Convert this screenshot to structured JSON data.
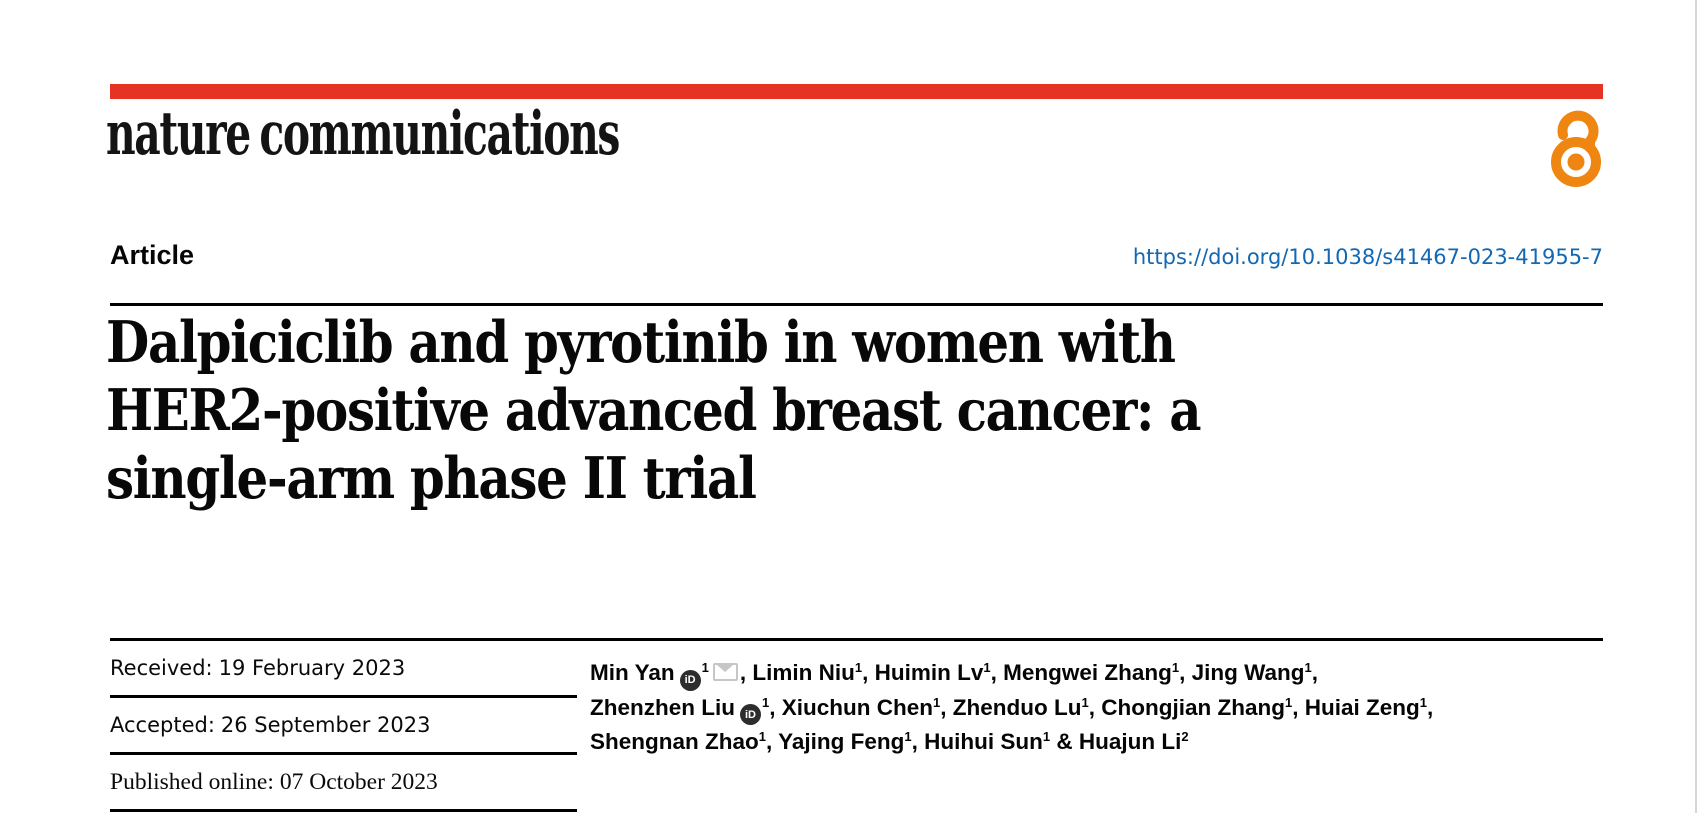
{
  "journal": {
    "logo_text": "nature communications",
    "open_access_icon": "open-access-lock-icon"
  },
  "header": {
    "article_type": "Article",
    "doi": "https://doi.org/10.1038/s41467-023-41955-7"
  },
  "title": {
    "lines": [
      "Dalpiciclib and pyrotinib in women with",
      "HER2-positive advanced breast cancer: a",
      "single-arm phase II trial"
    ]
  },
  "dates": [
    {
      "label": "Received:",
      "value": "19 February 2023"
    },
    {
      "label": "Accepted:",
      "value": "26 September 2023"
    },
    {
      "label": "Published online:",
      "value": "07 October 2023"
    }
  ],
  "authors": {
    "orcid_glyph": "iD",
    "list": [
      {
        "name": "Min Yan",
        "sup": "1",
        "orcid": true,
        "email": true
      },
      {
        "name": "Limin Niu",
        "sup": "1"
      },
      {
        "name": "Huimin Lv",
        "sup": "1"
      },
      {
        "name": "Mengwei Zhang",
        "sup": "1"
      },
      {
        "name": "Jing Wang",
        "sup": "1",
        "break_after": true
      },
      {
        "name": "Zhenzhen Liu",
        "sup": "1",
        "orcid": true
      },
      {
        "name": "Xiuchun Chen",
        "sup": "1"
      },
      {
        "name": "Zhenduo Lu",
        "sup": "1"
      },
      {
        "name": "Chongjian Zhang",
        "sup": "1"
      },
      {
        "name": "Huiai Zeng",
        "sup": "1",
        "break_after": true
      },
      {
        "name": "Shengnan Zhao",
        "sup": "1"
      },
      {
        "name": "Yajing Feng",
        "sup": "1"
      },
      {
        "name": "Huihui Sun",
        "sup": "1",
        "amp_after": true
      },
      {
        "name": "Huajun Li",
        "sup": "2",
        "last": true
      }
    ]
  },
  "colors": {
    "brand_red": "#e53423",
    "link_blue": "#1268b3",
    "open_access_orange": "#ee8611",
    "text_black": "#080808",
    "orcid_dark": "#2d2d2d",
    "envelope_gray": "#c6c6c6"
  }
}
